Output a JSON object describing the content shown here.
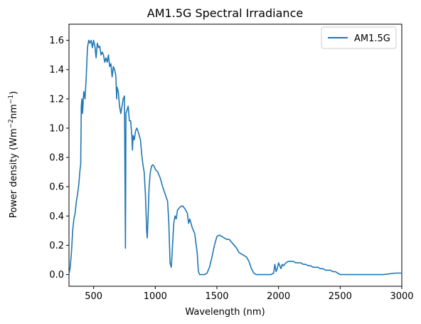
{
  "chart_data": {
    "type": "line",
    "title": "AM1.5G Spectral Irradiance",
    "xlabel": "Wavelength (nm)",
    "ylabel_main": "Power density (Wm",
    "ylabel_sup1": "−2",
    "ylabel_mid": "nm",
    "ylabel_sup2": "−1",
    "ylabel_end": ")",
    "xlim": [
      300,
      3000
    ],
    "ylim": [
      -0.08,
      1.71
    ],
    "xticks": [
      500,
      1000,
      1500,
      2000,
      2500,
      3000
    ],
    "yticks": [
      0.0,
      0.2,
      0.4,
      0.6,
      0.8,
      1.0,
      1.2,
      1.4,
      1.6
    ],
    "ytick_labels": [
      "0.0",
      "0.2",
      "0.4",
      "0.6",
      "0.8",
      "1.0",
      "1.2",
      "1.4",
      "1.6"
    ],
    "legend_position": "top-right",
    "series": [
      {
        "name": "AM1.5G",
        "color": "#1f77b4",
        "x": [
          300,
          310,
          320,
          330,
          340,
          350,
          360,
          370,
          380,
          390,
          395,
          400,
          405,
          410,
          420,
          430,
          440,
          450,
          460,
          470,
          480,
          490,
          500,
          510,
          520,
          530,
          540,
          550,
          560,
          570,
          580,
          590,
          600,
          610,
          620,
          630,
          640,
          650,
          660,
          670,
          680,
          687,
          690,
          700,
          710,
          720,
          730,
          740,
          750,
          758,
          760,
          762,
          770,
          780,
          790,
          800,
          810,
          815,
          820,
          830,
          840,
          850,
          860,
          870,
          880,
          890,
          900,
          910,
          920,
          930,
          935,
          940,
          950,
          960,
          970,
          980,
          990,
          1000,
          1020,
          1040,
          1060,
          1080,
          1100,
          1110,
          1120,
          1130,
          1135,
          1140,
          1150,
          1160,
          1170,
          1180,
          1200,
          1220,
          1240,
          1260,
          1270,
          1280,
          1300,
          1320,
          1340,
          1350,
          1360,
          1380,
          1400,
          1420,
          1440,
          1460,
          1480,
          1500,
          1520,
          1540,
          1560,
          1580,
          1600,
          1620,
          1640,
          1660,
          1680,
          1700,
          1720,
          1740,
          1760,
          1780,
          1800,
          1820,
          1840,
          1860,
          1880,
          1900,
          1920,
          1940,
          1960,
          1970,
          1980,
          1990,
          2000,
          2010,
          2020,
          2030,
          2040,
          2060,
          2080,
          2100,
          2120,
          2140,
          2160,
          2180,
          2200,
          2220,
          2240,
          2260,
          2280,
          2300,
          2320,
          2340,
          2360,
          2380,
          2400,
          2420,
          2440,
          2460,
          2480,
          2500,
          2550,
          2600,
          2650,
          2700,
          2750,
          2800,
          2850,
          2900,
          2950,
          3000
        ],
        "y": [
          0.0,
          0.05,
          0.15,
          0.3,
          0.38,
          0.42,
          0.5,
          0.55,
          0.62,
          0.72,
          0.75,
          1.15,
          1.2,
          1.1,
          1.25,
          1.2,
          1.35,
          1.55,
          1.6,
          1.58,
          1.6,
          1.55,
          1.6,
          1.56,
          1.48,
          1.58,
          1.55,
          1.56,
          1.5,
          1.52,
          1.5,
          1.45,
          1.48,
          1.45,
          1.5,
          1.42,
          1.44,
          1.35,
          1.42,
          1.4,
          1.36,
          1.2,
          1.28,
          1.25,
          1.15,
          1.1,
          1.15,
          1.2,
          1.22,
          0.18,
          0.6,
          1.1,
          1.12,
          1.15,
          1.05,
          1.05,
          0.95,
          0.85,
          0.95,
          0.92,
          0.98,
          1.0,
          0.98,
          0.95,
          0.92,
          0.82,
          0.75,
          0.7,
          0.55,
          0.3,
          0.25,
          0.35,
          0.6,
          0.7,
          0.74,
          0.75,
          0.74,
          0.72,
          0.7,
          0.66,
          0.6,
          0.55,
          0.5,
          0.35,
          0.08,
          0.05,
          0.12,
          0.2,
          0.35,
          0.4,
          0.38,
          0.44,
          0.46,
          0.47,
          0.45,
          0.42,
          0.35,
          0.38,
          0.32,
          0.28,
          0.15,
          0.02,
          0.0,
          0.0,
          0.0,
          0.01,
          0.05,
          0.12,
          0.2,
          0.26,
          0.27,
          0.26,
          0.25,
          0.24,
          0.24,
          0.22,
          0.2,
          0.18,
          0.15,
          0.14,
          0.13,
          0.12,
          0.09,
          0.04,
          0.01,
          0.0,
          0.0,
          0.0,
          0.0,
          0.0,
          0.0,
          0.0,
          0.01,
          0.07,
          0.02,
          0.04,
          0.08,
          0.06,
          0.04,
          0.07,
          0.06,
          0.08,
          0.09,
          0.09,
          0.09,
          0.08,
          0.08,
          0.08,
          0.07,
          0.07,
          0.06,
          0.06,
          0.05,
          0.05,
          0.05,
          0.04,
          0.04,
          0.03,
          0.03,
          0.03,
          0.02,
          0.02,
          0.01,
          0.0,
          0.0,
          0.0,
          0.0,
          0.0,
          0.0,
          0.0,
          0.0,
          0.005,
          0.01,
          0.01
        ]
      }
    ]
  }
}
